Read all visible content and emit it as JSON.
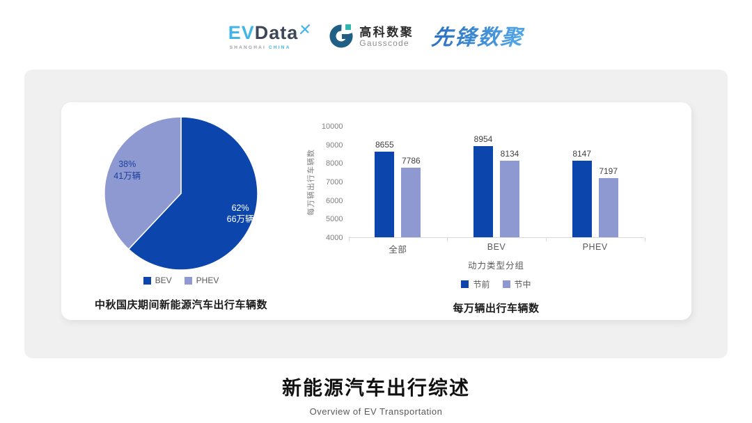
{
  "header": {
    "evdata_logo": {
      "text_ev": "EV",
      "text_data": "Data",
      "sub_left": "SHANGHAI",
      "sub_right": "CHINA",
      "brand_blue": "#41b5e5",
      "brand_dark": "#3d4757"
    },
    "gausscode_logo": {
      "name_cn": "高科数聚",
      "name_en": "Gausscode",
      "mark_dark": "#1f5f85",
      "mark_teal": "#2cb8b0"
    },
    "xianfeng_logo": {
      "name": "先锋数聚",
      "gradient_start": "#2a6fc0",
      "gradient_end": "#55a8e8"
    }
  },
  "colors": {
    "primary_blue": "#0c46ad",
    "secondary_periwinkle": "#8e99d1",
    "panel_gray": "#f0f0f1",
    "axis_gray": "#7f7f7f"
  },
  "chart_data": [
    {
      "type": "pie",
      "title": "中秋国庆期间新能源汽车出行车辆数",
      "start_angle_deg": 0,
      "slices": [
        {
          "label": "BEV",
          "percent": 62,
          "percent_label": "62%",
          "value_label": "66万辆",
          "color": "#0c46ad",
          "text_color": "#ffffff"
        },
        {
          "label": "PHEV",
          "percent": 38,
          "percent_label": "38%",
          "value_label": "41万辆",
          "color": "#8e99d1",
          "text_color": "#1c3f9e"
        }
      ],
      "legend_position": "bottom"
    },
    {
      "type": "bar",
      "title": "每万辆出行车辆数",
      "ylabel": "每万辆出行车辆数",
      "xlabel": "动力类型分组",
      "categories": [
        "全部",
        "BEV",
        "PHEV"
      ],
      "series": [
        {
          "name": "节前",
          "color": "#0c46ad",
          "values": [
            8655,
            8954,
            8147
          ]
        },
        {
          "name": "节中",
          "color": "#8e99d1",
          "values": [
            7786,
            8134,
            7197
          ]
        }
      ],
      "ylim": [
        4000,
        10000
      ],
      "ytick_step": 1000,
      "grid": false,
      "legend_position": "bottom"
    }
  ],
  "footer": {
    "title": "新能源汽车出行综述",
    "subtitle": "Overview of EV Transportation"
  }
}
